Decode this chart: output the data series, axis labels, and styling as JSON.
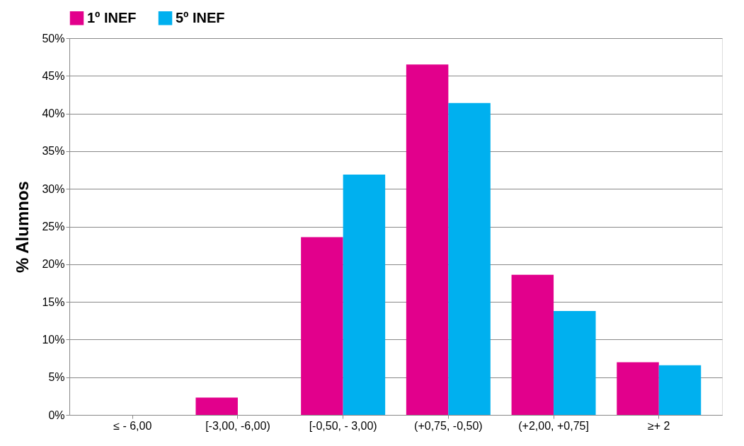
{
  "chart_data": {
    "type": "bar",
    "ylabel": "% Alumnos",
    "categories": [
      "≤ - 6,00",
      "[-3,00, -6,00)",
      "[-0,50, - 3,00)",
      "(+0,75, -0,50)",
      "(+2,00, +0,75]",
      "≥+ 2"
    ],
    "series": [
      {
        "name": "1º INEF",
        "color": "#e2008c",
        "values": [
          0,
          2.3,
          23.6,
          46.5,
          18.6,
          7.0
        ]
      },
      {
        "name": "5º INEF",
        "color": "#00b0ef",
        "values": [
          0,
          0,
          31.9,
          41.4,
          13.8,
          6.6
        ]
      }
    ],
    "ylim": [
      0,
      50
    ],
    "yticks": [
      {
        "value": 0,
        "label": "0%"
      },
      {
        "value": 5,
        "label": "5%"
      },
      {
        "value": 10,
        "label": "10%"
      },
      {
        "value": 15,
        "label": "15%"
      },
      {
        "value": 20,
        "label": "20%"
      },
      {
        "value": 25,
        "label": "25%"
      },
      {
        "value": 30,
        "label": "30%"
      },
      {
        "value": 35,
        "label": "35%"
      },
      {
        "value": 40,
        "label": "40%"
      },
      {
        "value": 45,
        "label": "45%"
      },
      {
        "value": 50,
        "label": "50%"
      }
    ],
    "grid": "y",
    "legend": "top"
  }
}
